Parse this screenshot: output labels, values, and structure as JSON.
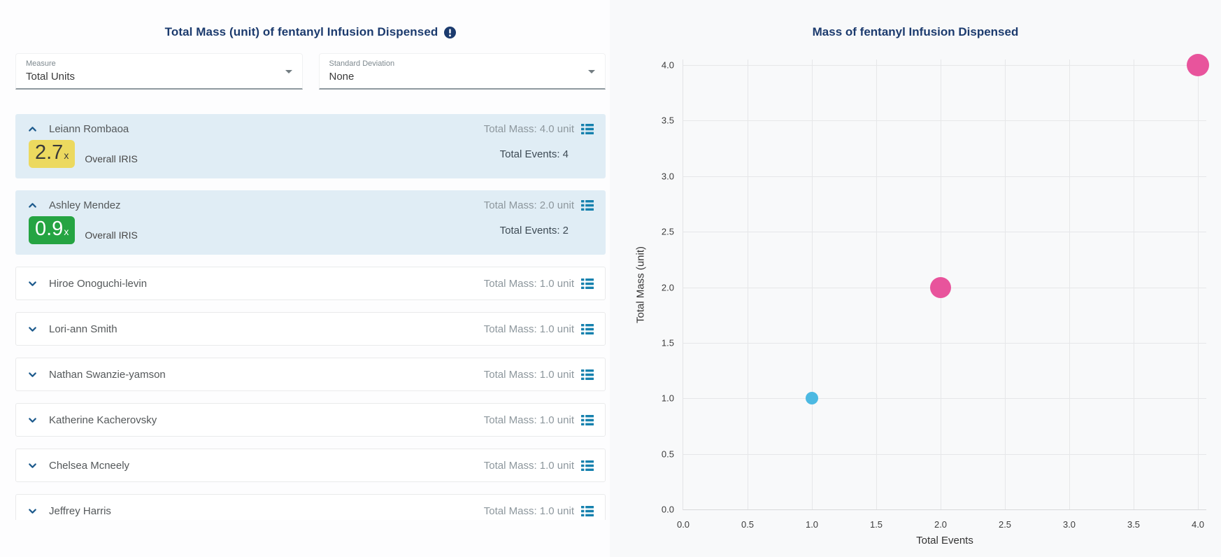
{
  "left_panel": {
    "title": "Total Mass (unit) of fentanyl Infusion Dispensed",
    "filters": [
      {
        "label": "Measure",
        "value": "Total Units"
      },
      {
        "label": "Standard Deviation",
        "value": "None"
      }
    ],
    "people": [
      {
        "name": "Leiann Rombaoa",
        "total_mass": "Total Mass: 4.0 unit",
        "expanded": true,
        "iris_value": "2.7",
        "iris_suffix": "x",
        "iris_label": "Overall IRIS",
        "iris_badge_color": "#ecd95f",
        "iris_badge_text_color": "#3a3a3a",
        "total_events": "Total Events: 4"
      },
      {
        "name": "Ashley Mendez",
        "total_mass": "Total Mass: 2.0 unit",
        "expanded": true,
        "iris_value": "0.9",
        "iris_suffix": "x",
        "iris_label": "Overall IRIS",
        "iris_badge_color": "#25a442",
        "iris_badge_text_color": "#ffffff",
        "total_events": "Total Events: 2"
      },
      {
        "name": "Hiroe Onoguchi-levin",
        "total_mass": "Total Mass: 1.0 unit",
        "expanded": false
      },
      {
        "name": "Lori-ann Smith",
        "total_mass": "Total Mass: 1.0 unit",
        "expanded": false
      },
      {
        "name": "Nathan Swanzie-yamson",
        "total_mass": "Total Mass: 1.0 unit",
        "expanded": false
      },
      {
        "name": "Katherine Kacherovsky",
        "total_mass": "Total Mass: 1.0 unit",
        "expanded": false
      },
      {
        "name": "Chelsea Mcneely",
        "total_mass": "Total Mass: 1.0 unit",
        "expanded": false
      },
      {
        "name": "Jeffrey Harris",
        "total_mass": "Total Mass: 1.0 unit",
        "expanded": false
      }
    ]
  },
  "chart_data": {
    "type": "scatter",
    "title": "Mass of fentanyl Infusion Dispensed",
    "xlabel": "Total Events",
    "ylabel": "Total Mass (unit)",
    "xlim": [
      0.0,
      4.0
    ],
    "ylim": [
      0.0,
      4.0
    ],
    "xticks": [
      "0.0",
      "0.5",
      "1.0",
      "1.5",
      "2.0",
      "2.5",
      "3.0",
      "3.5",
      "4.0"
    ],
    "yticks": [
      "0.0",
      "0.5",
      "1.0",
      "1.5",
      "2.0",
      "2.5",
      "3.0",
      "3.5",
      "4.0"
    ],
    "grid": true,
    "legend": false,
    "points": [
      {
        "x": 1.0,
        "y": 1.0,
        "color": "#4cb9e2",
        "radius": 9
      },
      {
        "x": 2.0,
        "y": 2.0,
        "color": "#e8549c",
        "radius": 15
      },
      {
        "x": 4.0,
        "y": 4.0,
        "color": "#e8549c",
        "radius": 16
      }
    ]
  },
  "colors": {
    "title_navy": "#1c3b6e",
    "expanded_row_bg": "#e0edf5",
    "chevron_blue": "#1e5b8d",
    "list_icon_teal": "#1681ae",
    "muted_text": "#8d979d"
  }
}
